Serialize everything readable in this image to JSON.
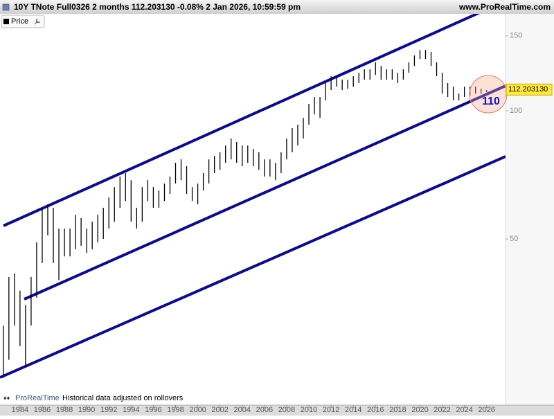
{
  "chart_data": {
    "type": "hilo",
    "title": "10Y TNote Full0326 2 months 112.203130 -0.08% 2 Jan 2026, 10:59:59 pm",
    "source": "www.ProRealTime.com",
    "brand": "ProRealTime",
    "note": "Historical data adjusted on rollovers",
    "annotation": "110",
    "last_price": {
      "value": 112.20313,
      "label": "112.203130"
    },
    "log_scale": true,
    "grid": false,
    "xlim": [
      1982.2,
      2027.7
    ],
    "xticks": [
      1984,
      1986,
      1988,
      1990,
      1992,
      1994,
      1996,
      1998,
      2000,
      2002,
      2004,
      2006,
      2008,
      2010,
      2012,
      2014,
      2016,
      2018,
      2020,
      2022,
      2024,
      2026
    ],
    "ylim": [
      20.5,
      169
    ],
    "yticks": [
      50,
      100,
      150
    ],
    "x": [
      1982.5,
      1983,
      1983.5,
      1984,
      1984.5,
      1985,
      1985.5,
      1986,
      1986.5,
      1987,
      1987.5,
      1988,
      1988.5,
      1989,
      1989.5,
      1990,
      1990.5,
      1991,
      1991.5,
      1992,
      1992.5,
      1993,
      1993.5,
      1994,
      1994.5,
      1995,
      1995.5,
      1996,
      1996.5,
      1997,
      1997.5,
      1998,
      1998.5,
      1999,
      1999.5,
      2000,
      2000.5,
      2001,
      2001.5,
      2002,
      2002.5,
      2003,
      2003.5,
      2004,
      2004.5,
      2005,
      2005.5,
      2006,
      2006.5,
      2007,
      2007.5,
      2008,
      2008.5,
      2009,
      2009.5,
      2010,
      2010.5,
      2011,
      2011.5,
      2012,
      2012.5,
      2013,
      2013.5,
      2014,
      2014.5,
      2015,
      2015.5,
      2016,
      2016.5,
      2017,
      2017.5,
      2018,
      2018.5,
      2019,
      2019.5,
      2020,
      2020.5,
      2021,
      2021.5,
      2022,
      2022.5,
      2023,
      2023.5,
      2024,
      2024.5,
      2025,
      2025.5,
      2026
    ],
    "series": [
      {
        "name": "Price",
        "color": "#000000",
        "high": [
          31.3,
          40.7,
          41.5,
          37.8,
          35.0,
          40.7,
          49.1,
          59.2,
          60.3,
          59.2,
          52.9,
          52.9,
          52.9,
          57.0,
          56.0,
          52.9,
          54.9,
          57.0,
          59.2,
          62.6,
          66.2,
          70.1,
          71.4,
          68.7,
          59.2,
          66.2,
          68.7,
          66.2,
          65.0,
          67.5,
          70.1,
          75.5,
          76.9,
          74.1,
          66.2,
          67.5,
          71.4,
          76.9,
          78.4,
          79.9,
          82.9,
          86.1,
          84.5,
          82.9,
          82.9,
          81.4,
          79.9,
          76.9,
          76.9,
          75.5,
          79.9,
          86.1,
          91.1,
          92.8,
          96.3,
          103.8,
          107.8,
          107.8,
          116.2,
          120.6,
          120.6,
          118.4,
          118.4,
          120.6,
          122.9,
          125.2,
          125.2,
          130.0,
          127.5,
          125.2,
          125.2,
          122.9,
          125.2,
          130.0,
          135.0,
          139.0,
          139.0,
          137.5,
          130.0,
          122.9,
          116.2,
          114.0,
          109.8,
          114.0,
          114.0,
          114.0,
          112.7,
          111.9
        ],
        "low": [
          23.6,
          26.0,
          31.3,
          28.0,
          25.0,
          31.3,
          36.4,
          43.9,
          51.0,
          43.9,
          40.0,
          45.5,
          45.5,
          47.3,
          48.2,
          46.4,
          47.3,
          49.1,
          50.0,
          52.9,
          54.9,
          59.2,
          61.4,
          54.9,
          52.9,
          54.9,
          61.4,
          59.2,
          59.2,
          61.4,
          63.8,
          67.5,
          68.7,
          63.8,
          61.4,
          60.3,
          65.0,
          67.5,
          71.4,
          72.7,
          75.5,
          76.9,
          75.5,
          74.1,
          75.5,
          74.1,
          72.7,
          70.1,
          70.1,
          68.7,
          71.4,
          76.9,
          79.9,
          82.9,
          86.1,
          92.8,
          98.1,
          96.3,
          105.8,
          111.9,
          114.0,
          111.9,
          112.7,
          114.0,
          116.2,
          118.4,
          118.4,
          121.5,
          118.4,
          118.4,
          118.4,
          116.2,
          118.4,
          122.9,
          127.5,
          132.4,
          132.4,
          127.5,
          120.6,
          109.8,
          107.8,
          105.8,
          105.8,
          107.8,
          108.6,
          109.8,
          109.8,
          110.6
        ]
      }
    ]
  }
}
